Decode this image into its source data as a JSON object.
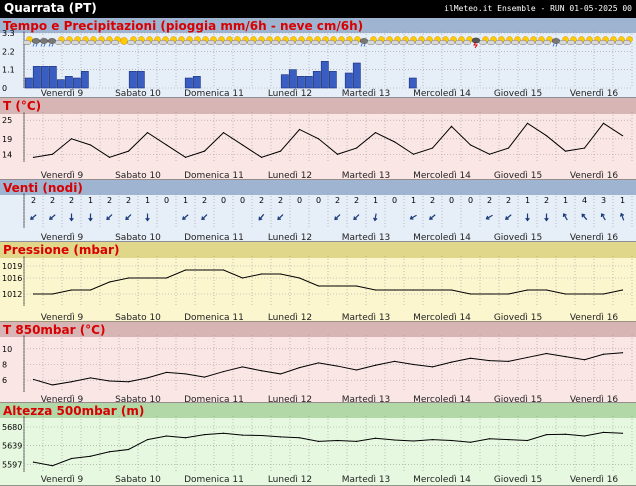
{
  "header": {
    "location": "Quarrata (PT)",
    "run_info": "ilMeteo.it Ensemble - RUN 01-05-2025 00"
  },
  "days": [
    "Venerdì 9",
    "Sabato 10",
    "Domenica 11",
    "Lunedì 12",
    "Martedì 13",
    "Mercoledì 14",
    "Giovedì 15",
    "Venerdì 16"
  ],
  "weather_icons": [
    "partly-cloudy",
    "cloud-rain",
    "cloud-rain",
    "cloud-rain",
    "partly-cloudy",
    "partly-cloudy",
    "partly-cloudy",
    "partly-cloudy",
    "partly-cloudy",
    "partly-cloudy",
    "partly-cloudy",
    "partly-cloudy",
    "sun",
    "partly-cloudy",
    "partly-cloudy",
    "partly-cloudy",
    "partly-cloudy",
    "partly-cloudy",
    "partly-cloudy",
    "partly-cloudy",
    "partly-cloudy",
    "partly-cloudy",
    "partly-cloudy",
    "partly-cloudy",
    "partly-cloudy",
    "partly-cloudy",
    "partly-cloudy",
    "partly-cloudy",
    "partly-cloudy",
    "partly-cloudy",
    "partly-cloudy",
    "partly-cloudy",
    "partly-cloudy",
    "partly-cloudy",
    "partly-cloudy",
    "partly-cloudy",
    "partly-cloudy",
    "partly-cloudy",
    "partly-cloudy",
    "partly-cloudy",
    "partly-cloudy",
    "partly-cloudy",
    "cloud-rain",
    "partly-cloudy",
    "partly-cloudy",
    "partly-cloudy",
    "partly-cloudy",
    "partly-cloudy",
    "partly-cloudy",
    "partly-cloudy",
    "partly-cloudy",
    "partly-cloudy",
    "partly-cloudy",
    "partly-cloudy",
    "partly-cloudy",
    "partly-cloudy",
    "thunderstorm",
    "partly-cloudy",
    "partly-cloudy",
    "partly-cloudy",
    "partly-cloudy",
    "partly-cloudy",
    "partly-cloudy",
    "partly-cloudy",
    "partly-cloudy",
    "partly-cloudy",
    "cloud-rain",
    "partly-cloudy",
    "partly-cloudy",
    "partly-cloudy",
    "partly-cloudy",
    "partly-cloudy",
    "partly-cloudy",
    "partly-cloudy",
    "partly-cloudy",
    "partly-cloudy"
  ],
  "chart_data": [
    {
      "type": "bar",
      "title": "Tempo e Precipitazioni (pioggia mm/6h - neve cm/6h)",
      "yticks": [
        0,
        1.1,
        2.2,
        3.3
      ],
      "ylim": [
        0,
        3.3
      ],
      "values": [
        0.6,
        1.3,
        1.3,
        1.3,
        0.5,
        0.7,
        0.6,
        1.0,
        0,
        0,
        0,
        0,
        0,
        1.0,
        1.0,
        0,
        0,
        0,
        0,
        0,
        0.6,
        0.7,
        0,
        0,
        0,
        0,
        0,
        0,
        0,
        0,
        0,
        0,
        0.8,
        1.1,
        0.7,
        0.7,
        1.0,
        1.6,
        1.0,
        0,
        0.9,
        1.5,
        0,
        0,
        0,
        0,
        0,
        0,
        0.6,
        0,
        0,
        0,
        0,
        0,
        0,
        0,
        0,
        0,
        0,
        0,
        0,
        0,
        0,
        0,
        0,
        0,
        0,
        0,
        0,
        0,
        0,
        0,
        0,
        0,
        0,
        0
      ],
      "colors": {
        "bar": "#3a5dc2",
        "background": "#e6eef8",
        "title_bar": "#9fb4d0"
      }
    },
    {
      "type": "line",
      "title": "T (°C)",
      "yticks": [
        14,
        19,
        25
      ],
      "ylim": [
        11.5,
        27
      ],
      "values": [
        13,
        14,
        19,
        17,
        13,
        15,
        21,
        17,
        13,
        15,
        21,
        17,
        13,
        15,
        22,
        19,
        14,
        16,
        21,
        18,
        14,
        16,
        23,
        17,
        14,
        16,
        24,
        20,
        15,
        16,
        24,
        20
      ],
      "colors": {
        "background": "#fbe6e6",
        "title_bar": "#d8b5b5"
      }
    },
    {
      "type": "wind",
      "title": "Venti (nodi)",
      "speeds": [
        2,
        2,
        2,
        1,
        2,
        2,
        1,
        0,
        1,
        2,
        0,
        0,
        2,
        2,
        0,
        0,
        2,
        2,
        1,
        0,
        1,
        2,
        0,
        0,
        2,
        2,
        1,
        2,
        1,
        4,
        3,
        1
      ],
      "directions_deg": [
        230,
        230,
        180,
        180,
        225,
        225,
        180,
        0,
        230,
        225,
        0,
        0,
        220,
        225,
        0,
        0,
        225,
        225,
        190,
        0,
        240,
        230,
        0,
        0,
        240,
        230,
        180,
        180,
        330,
        320,
        330,
        340
      ],
      "colors": {
        "background": "#e6eef8",
        "title_bar": "#9fb4d0",
        "arrow": "#1a3a7a"
      }
    },
    {
      "type": "line",
      "title": "Pressione (mbar)",
      "yticks": [
        1012,
        1016,
        1019
      ],
      "ylim": [
        1009,
        1021
      ],
      "values": [
        1012,
        1012,
        1013,
        1013,
        1015,
        1016,
        1016,
        1016,
        1018,
        1018,
        1018,
        1016,
        1017,
        1017,
        1016,
        1014,
        1014,
        1014,
        1013,
        1013,
        1013,
        1013,
        1013,
        1012,
        1012,
        1012,
        1013,
        1013,
        1012,
        1012,
        1012,
        1013
      ],
      "colors": {
        "background": "#fcf6cf",
        "title_bar": "#e0d78a"
      }
    },
    {
      "type": "line",
      "title": "T 850mbar (°C)",
      "yticks": [
        6,
        8,
        10
      ],
      "ylim": [
        4.5,
        11.5
      ],
      "values": [
        6.1,
        5.4,
        5.8,
        6.3,
        5.9,
        5.8,
        6.3,
        7.0,
        6.8,
        6.4,
        7.1,
        7.7,
        7.2,
        6.8,
        7.6,
        8.2,
        7.8,
        7.3,
        7.9,
        8.4,
        8.0,
        7.7,
        8.3,
        8.8,
        8.5,
        8.4,
        8.9,
        9.4,
        9.0,
        8.6,
        9.3,
        9.5
      ],
      "colors": {
        "background": "#fbe6e6",
        "title_bar": "#d8b5b5"
      }
    },
    {
      "type": "line",
      "title": "Altezza 500mbar (m)",
      "yticks": [
        5597,
        5639,
        5680
      ],
      "ylim": [
        5580,
        5700
      ],
      "values": [
        5602,
        5594,
        5610,
        5615,
        5625,
        5630,
        5652,
        5660,
        5656,
        5663,
        5666,
        5662,
        5661,
        5658,
        5656,
        5648,
        5650,
        5648,
        5655,
        5651,
        5649,
        5652,
        5650,
        5646,
        5654,
        5652,
        5650,
        5663,
        5664,
        5660,
        5668,
        5666
      ],
      "colors": {
        "background": "#e6f8e0",
        "title_bar": "#b2d8a8"
      }
    }
  ]
}
